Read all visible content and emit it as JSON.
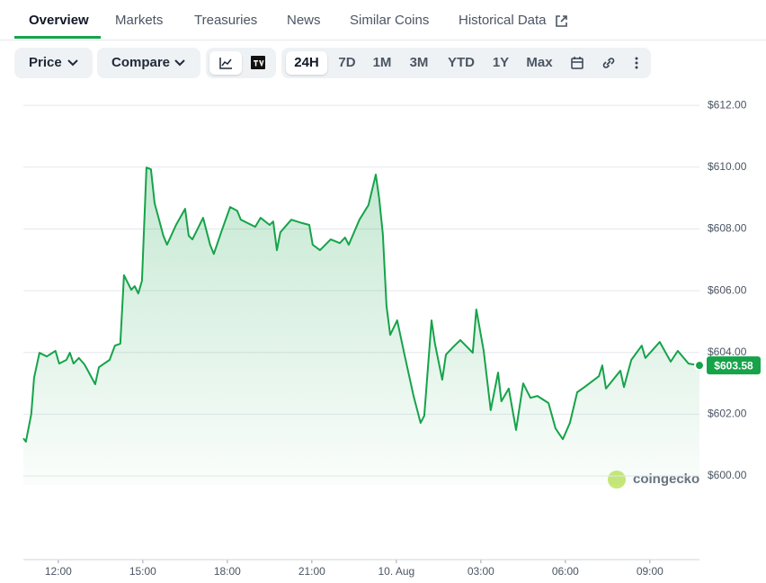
{
  "tabs": [
    "Overview",
    "Markets",
    "Treasuries",
    "News",
    "Similar Coins",
    "Historical Data"
  ],
  "toolbar": {
    "dropdowns": [
      "Price",
      "Compare"
    ],
    "ranges": [
      "24H",
      "7D",
      "1M",
      "3M",
      "YTD",
      "1Y",
      "Max"
    ]
  },
  "watermark": "coingecko",
  "chart_data": {
    "type": "line",
    "color": "#16a34a",
    "x": [
      10.76,
      10.85,
      11.04,
      11.14,
      11.33,
      11.59,
      11.9,
      12.03,
      12.29,
      12.41,
      12.54,
      12.73,
      12.93,
      13.05,
      13.31,
      13.44,
      13.82,
      14.01,
      14.2,
      14.33,
      14.59,
      14.71,
      14.84,
      14.97,
      15.13,
      15.29,
      15.42,
      15.73,
      15.86,
      16.18,
      16.5,
      16.63,
      16.76,
      17.14,
      17.39,
      17.52,
      17.78,
      18.1,
      18.35,
      18.48,
      18.99,
      19.18,
      19.5,
      19.63,
      19.76,
      19.88,
      20.27,
      20.65,
      20.91,
      21.03,
      21.29,
      21.67,
      21.99,
      22.18,
      22.31,
      22.69,
      23.01,
      23.27,
      23.39,
      23.52,
      23.65,
      23.78,
      24.03,
      24.29,
      24.61,
      24.86,
      24.99,
      25.25,
      25.37,
      25.63,
      25.76,
      26.01,
      26.27,
      26.71,
      26.84,
      27.1,
      27.35,
      27.61,
      27.73,
      27.99,
      28.25,
      28.5,
      28.76,
      29.01,
      29.4,
      29.65,
      29.91,
      30.16,
      30.42,
      30.68,
      31.19,
      31.31,
      31.44,
      31.95,
      32.08,
      32.34,
      32.71,
      32.84,
      33.35,
      33.74,
      33.99,
      34.37,
      34.76
    ],
    "values": [
      601.22,
      601.11,
      602.01,
      603.18,
      603.99,
      603.87,
      604.05,
      603.64,
      603.76,
      603.99,
      603.64,
      603.82,
      603.61,
      603.41,
      602.97,
      603.52,
      603.76,
      604.22,
      604.28,
      606.5,
      606.03,
      606.15,
      605.91,
      606.32,
      609.99,
      609.93,
      608.83,
      607.78,
      607.49,
      608.13,
      608.65,
      607.78,
      607.66,
      608.36,
      607.49,
      607.19,
      607.89,
      608.71,
      608.59,
      608.3,
      608.07,
      608.36,
      608.13,
      608.24,
      607.31,
      607.89,
      608.3,
      608.19,
      608.13,
      607.49,
      607.31,
      607.66,
      607.54,
      607.72,
      607.49,
      608.3,
      608.77,
      609.76,
      609.0,
      607.84,
      605.51,
      604.57,
      605.04,
      603.93,
      602.59,
      601.72,
      601.95,
      605.04,
      604.28,
      603.12,
      603.93,
      604.17,
      604.4,
      603.99,
      605.39,
      604.05,
      602.13,
      603.35,
      602.42,
      602.83,
      601.49,
      603.0,
      602.53,
      602.59,
      602.36,
      601.54,
      601.19,
      601.72,
      602.71,
      602.88,
      603.23,
      603.58,
      602.83,
      603.41,
      602.88,
      603.76,
      604.22,
      603.82,
      604.34,
      603.7,
      604.05,
      603.64,
      603.58
    ],
    "xlim": [
      10.76,
      34.76
    ],
    "xticks": [
      {
        "value": 12,
        "label": "12:00"
      },
      {
        "value": 15,
        "label": "15:00"
      },
      {
        "value": 18,
        "label": "18:00"
      },
      {
        "value": 21,
        "label": "21:00"
      },
      {
        "value": 24,
        "label": "10. Aug"
      },
      {
        "value": 27,
        "label": "03:00"
      },
      {
        "value": 30,
        "label": "06:00"
      },
      {
        "value": 33,
        "label": "09:00"
      }
    ],
    "ylim": [
      599.71,
      612.5
    ],
    "yticks": [
      {
        "value": 600,
        "label": "$600.00"
      },
      {
        "value": 602,
        "label": "$602.00"
      },
      {
        "value": 604,
        "label": "$604.00"
      },
      {
        "value": 606,
        "label": "$606.00"
      },
      {
        "value": 608,
        "label": "$608.00"
      },
      {
        "value": 610,
        "label": "$610.00"
      },
      {
        "value": 612,
        "label": "$612.00"
      }
    ],
    "grid": true,
    "current_price": {
      "value": 603.58,
      "label": "$603.58"
    }
  }
}
